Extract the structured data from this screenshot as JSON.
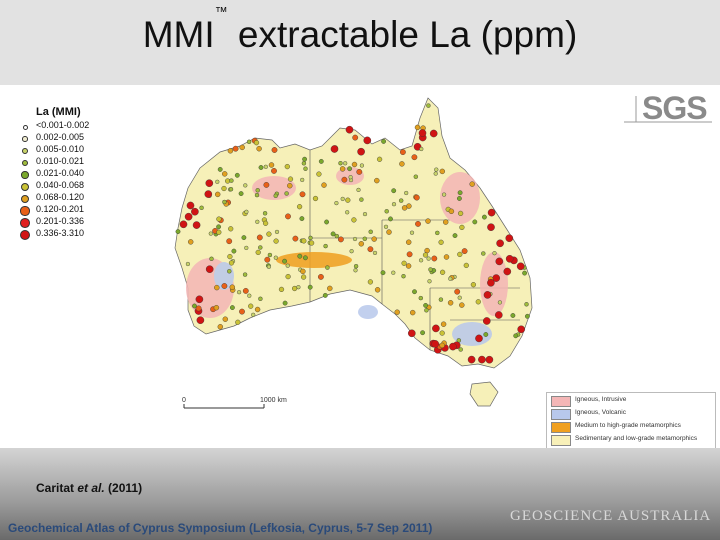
{
  "header": {
    "title": "MMI",
    "title_mark": "™",
    "title_rest": " extractable La (ppm)"
  },
  "logo": {
    "text": "SGS"
  },
  "map_legend": {
    "title": "La (MMI)",
    "classes": [
      {
        "label": "<0.001-0.002",
        "color": "#ffffff"
      },
      {
        "label": "0.002-0.005",
        "color": "#f0ecd0"
      },
      {
        "label": "0.005-0.010",
        "color": "#c8d36a"
      },
      {
        "label": "0.010-0.021",
        "color": "#9fbc3c"
      },
      {
        "label": "0.021-0.040",
        "color": "#7aa82c"
      },
      {
        "label": "0.040-0.068",
        "color": "#c9c236"
      },
      {
        "label": "0.068-0.120",
        "color": "#e0a020"
      },
      {
        "label": "0.120-0.201",
        "color": "#e86018"
      },
      {
        "label": "0.201-0.336",
        "color": "#e02020"
      },
      {
        "label": "0.336-3.310",
        "color": "#d01414"
      }
    ]
  },
  "scale_bar": {
    "start": "0",
    "end": "1000 km"
  },
  "geology_legend": [
    {
      "label": "Igneous, Intrusive",
      "color": "#f4b6b6"
    },
    {
      "label": "Igneous, Volcanic",
      "color": "#b8c8ec"
    },
    {
      "label": "Medium to high-grade metamorphics",
      "color": "#f0a020"
    },
    {
      "label": "Sedimentary and low-grade metamorphics",
      "color": "#f8f0b8"
    }
  ],
  "citation": {
    "authors": "Caritat ",
    "etal": "et al.",
    "year": " (2011)"
  },
  "footer": {
    "text": "Geochemical Atlas of Cyprus Symposium (Lefkosia, Cyprus, 5-7 Sep 2011)"
  },
  "watermark": {
    "text": "GEOSCIENCE AUSTRALIA"
  }
}
